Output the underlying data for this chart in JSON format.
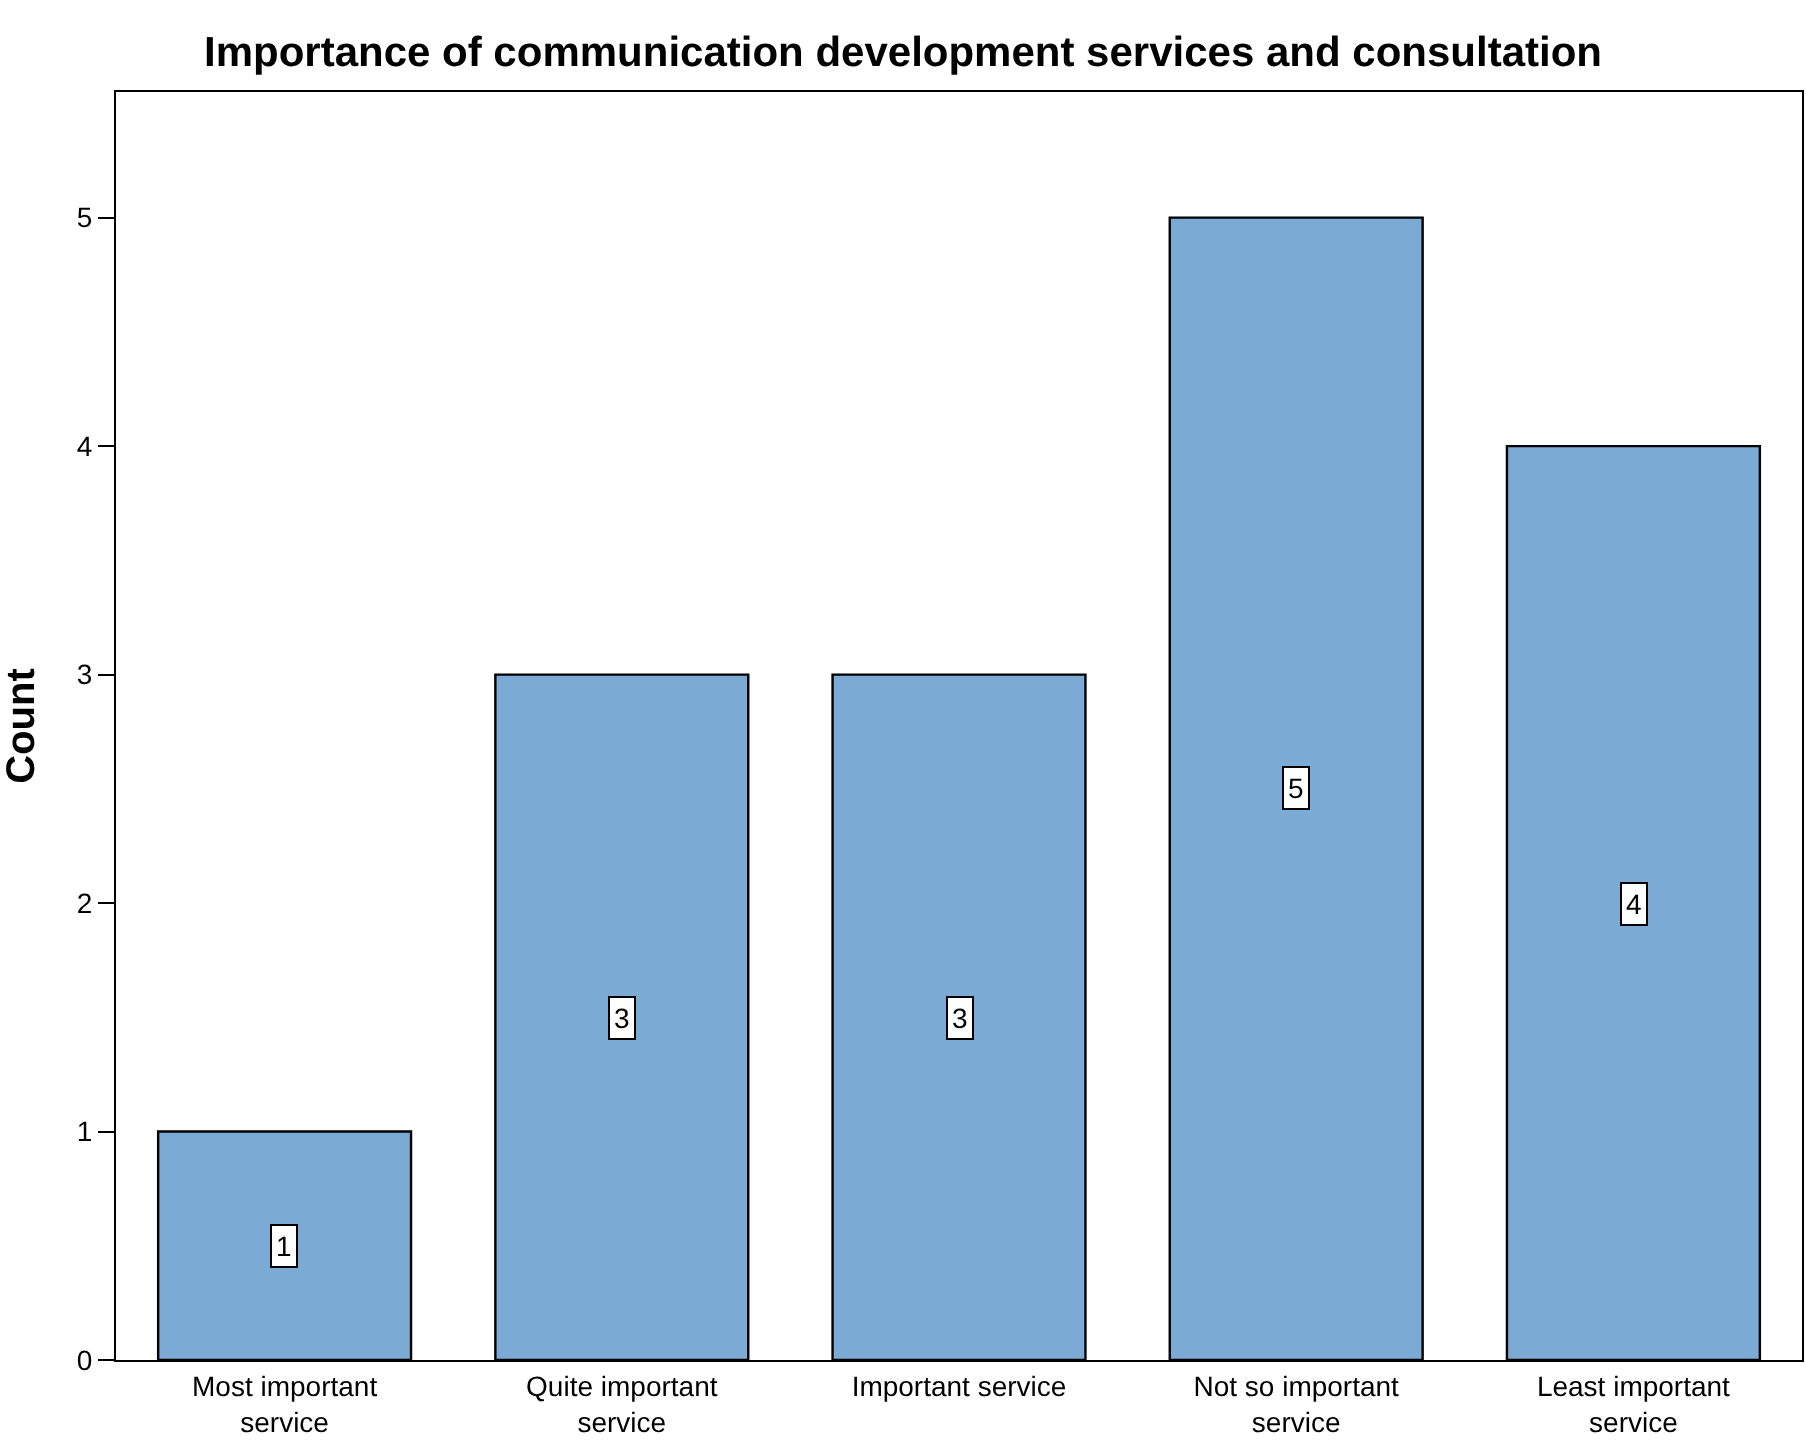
{
  "chart_data": {
    "type": "bar",
    "title": "Importance of communication development services and consultation",
    "ylabel": "Count",
    "categories": [
      "Most important\nservice",
      "Quite important\nservice",
      "Important service",
      "Not so important\nservice",
      "Least important\nservice"
    ],
    "values": [
      1,
      3,
      3,
      5,
      4
    ],
    "color": "#7baad5",
    "ylim": [
      0,
      5.55
    ],
    "yticks": [
      0,
      1,
      2,
      3,
      4,
      5
    ],
    "legend": false,
    "data_labels": true
  }
}
